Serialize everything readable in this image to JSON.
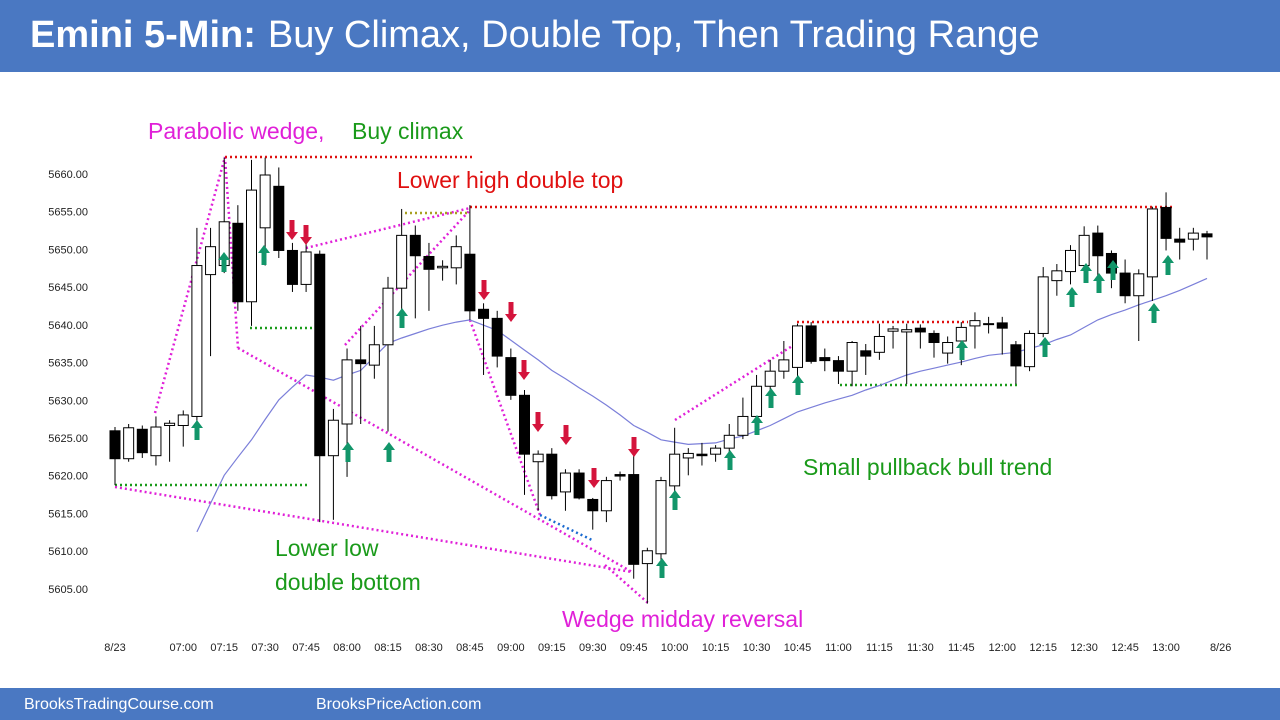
{
  "header": {
    "title_prefix": "Emini 5-Min:",
    "title": "Buy Climax, Double Top, Then Trading Range"
  },
  "footer": {
    "left": "BrooksTradingCourse.com",
    "right": "BrooksPriceAction.com"
  },
  "chart_data": {
    "type": "candlestick",
    "categories": [
      "8/23",
      null,
      null,
      null,
      null,
      "07:00",
      null,
      null,
      "07:15",
      null,
      null,
      "07:30",
      null,
      null,
      "07:45",
      null,
      null,
      "08:00",
      null,
      null,
      "08:15",
      null,
      null,
      "08:30",
      null,
      null,
      "08:45",
      null,
      null,
      "09:00",
      null,
      null,
      "09:15",
      null,
      null,
      "09:30",
      null,
      null,
      "09:45",
      null,
      null,
      "10:00",
      null,
      null,
      "10:15",
      null,
      null,
      "10:30",
      null,
      null,
      "10:45",
      null,
      null,
      "11:00",
      null,
      null,
      "11:15",
      null,
      null,
      "11:30",
      null,
      null,
      "11:45",
      null,
      null,
      "12:00",
      null,
      null,
      "12:15",
      null,
      null,
      "12:30",
      null,
      null,
      "12:45",
      null,
      null,
      "13:00",
      null,
      null,
      null,
      "8/26"
    ],
    "open": [
      5626.1,
      5622.4,
      5626.3,
      5622.8,
      5626.8,
      5626.8,
      5628,
      5646.8,
      5648,
      5653.6,
      5643.2,
      5653,
      5658.5,
      5650,
      5645.5,
      5649.5,
      5622.8,
      5627,
      5635.5,
      5634.8,
      5637.5,
      5645,
      5652,
      5649.2,
      5647.7,
      5647.7,
      5649.5,
      5642.2,
      5641,
      5635.8,
      5630.8,
      5622,
      5623,
      5618,
      5620.5,
      5617,
      5615.5,
      5620.3,
      5620.3,
      5608.5,
      5609.8,
      5618.8,
      5622.5,
      5623,
      5623,
      5623.8,
      5625.5,
      5628,
      5632,
      5634,
      5634.5,
      5640,
      5635.8,
      5635.4,
      5634,
      5636.7,
      5636.5,
      5639.3,
      5639.2,
      5639.7,
      5639,
      5636.4,
      5638,
      5640,
      5640.3,
      5640.4,
      5637.5,
      5634.6,
      5639,
      5646,
      5647.2,
      5648,
      5652.3,
      5649.6,
      5647,
      5644,
      5646.5,
      5655.7,
      5651.5,
      5651.5,
      5652.2,
      null
    ],
    "high": [
      5626.6,
      5627,
      5626.8,
      5628,
      5627.5,
      5628.8,
      5653,
      5653,
      5662.3,
      5656,
      5662,
      5662.3,
      5661,
      5651,
      5651,
      5650,
      5629,
      5637,
      5640,
      5640,
      5646.5,
      5655.5,
      5653.3,
      5651,
      5648.7,
      5652,
      5656,
      5643,
      5642,
      5637,
      5631.5,
      5623.5,
      5623.8,
      5621,
      5621,
      5617.2,
      5620,
      5620.7,
      5623,
      5610.6,
      5620,
      5626.5,
      5623.8,
      5624.5,
      5624.2,
      5627,
      5630.5,
      5633.5,
      5635.5,
      5638,
      5640.3,
      5640.5,
      5637,
      5636,
      5638,
      5637.6,
      5640.3,
      5640,
      5640.3,
      5640.2,
      5639.4,
      5638.6,
      5640.5,
      5641.8,
      5641.2,
      5641.2,
      5638,
      5639.4,
      5647.8,
      5648.2,
      5650.7,
      5653.2,
      5653.3,
      5650,
      5648.8,
      5647.5,
      5655.8,
      5657.7,
      5653,
      5653,
      5652.6,
      null
    ],
    "low": [
      5618.9,
      5622,
      5622.5,
      5621.5,
      5622,
      5624,
      5627,
      5636,
      5647,
      5642,
      5640,
      5648,
      5649,
      5644.5,
      5644.5,
      5614,
      5614.3,
      5620,
      5627,
      5633,
      5626,
      5641,
      5641,
      5642,
      5646,
      5645.5,
      5640.8,
      5633.5,
      5634.5,
      5630.2,
      5617.6,
      5615.5,
      5617,
      5615.5,
      5617,
      5613,
      5614,
      5619.5,
      5606.5,
      5603.2,
      5609,
      5617.5,
      5620.2,
      5621.5,
      5622,
      5623,
      5625,
      5627,
      5631.2,
      5633,
      5633,
      5635,
      5634,
      5632.3,
      5632,
      5633.5,
      5635.5,
      5637,
      5632.3,
      5637,
      5635.8,
      5635,
      5634.8,
      5637,
      5639,
      5636.2,
      5632.3,
      5634,
      5638.5,
      5644,
      5645.5,
      5646,
      5645.8,
      5645,
      5643,
      5638,
      5643.3,
      5650,
      5648.8,
      5650,
      5648.8,
      null
    ],
    "close": [
      5622.4,
      5626.5,
      5623.2,
      5626.6,
      5627.1,
      5628.2,
      5648,
      5650.5,
      5653.8,
      5643.2,
      5658,
      5660,
      5650,
      5645.5,
      5649.8,
      5622.8,
      5627.5,
      5635.5,
      5635,
      5637.5,
      5645,
      5652,
      5649.3,
      5647.5,
      5647.9,
      5650.5,
      5642,
      5641,
      5636,
      5630.8,
      5623,
      5623,
      5617.5,
      5620.5,
      5617.2,
      5615.5,
      5619.5,
      5620.1,
      5608.4,
      5610.2,
      5619.5,
      5623,
      5623.1,
      5622.8,
      5623.8,
      5625.5,
      5628,
      5632,
      5634,
      5635.5,
      5640,
      5635.3,
      5635.4,
      5634,
      5637.8,
      5636,
      5638.6,
      5639.6,
      5639.5,
      5639.2,
      5637.8,
      5637.8,
      5639.8,
      5640.7,
      5640.2,
      5639.7,
      5634.7,
      5639,
      5646.5,
      5647.3,
      5650,
      5652,
      5649.3,
      5647,
      5644,
      5646.9,
      5655.5,
      5651.6,
      5651.1,
      5652.3,
      5651.8,
      null
    ],
    "moving_average": {
      "color": "#7b7fd9",
      "values": [
        null,
        null,
        null,
        null,
        null,
        null,
        5612.7,
        5616.5,
        5620.2,
        5622.6,
        5624.9,
        5627.6,
        5630.2,
        5631.9,
        5633.5,
        5633.2,
        5632.8,
        5633.5,
        5634.1,
        5635.9,
        5637.7,
        5638.4,
        5639,
        5639.6,
        5640.1,
        5640.5,
        5640.8,
        5640.1,
        5639.4,
        5638.1,
        5636.8,
        5635.5,
        5634.1,
        5633,
        5631.8,
        5630.7,
        5629.5,
        5628.2,
        5626.8,
        5625.9,
        5624.9,
        5624.6,
        5624.3,
        5624.4,
        5624.5,
        5625,
        5625.4,
        5626.1,
        5626.8,
        5627.7,
        5628.6,
        5629.2,
        5629.8,
        5630.3,
        5630.8,
        5631.5,
        5632.1,
        5632.8,
        5633.5,
        5634,
        5634.4,
        5634.8,
        5635.2,
        5635.7,
        5636.1,
        5636.3,
        5636.5,
        5637,
        5637.5,
        5638.2,
        5638.8,
        5639.8,
        5640.8,
        5641.5,
        5642.1,
        5642.8,
        5643.4,
        5644,
        5644.7,
        5645.5,
        5646.3,
        null
      ]
    },
    "ylim": [
      5602,
      5664
    ],
    "yticks": [
      {
        "value": 5605,
        "label": "5605.00"
      },
      {
        "value": 5610,
        "label": "5610.00"
      },
      {
        "value": 5615,
        "label": "5615.00"
      },
      {
        "value": 5620,
        "label": "5620.00"
      },
      {
        "value": 5625,
        "label": "5625.00"
      },
      {
        "value": 5630,
        "label": "5630.00"
      },
      {
        "value": 5635,
        "label": "5635.00"
      },
      {
        "value": 5640,
        "label": "5640.00"
      },
      {
        "value": 5645,
        "label": "5645.00"
      },
      {
        "value": 5650,
        "label": "5650.00"
      },
      {
        "value": 5655,
        "label": "5655.00"
      },
      {
        "value": 5660,
        "label": "5660.00"
      }
    ],
    "grid": false,
    "annotations": [
      {
        "text": "Parabolic wedge,",
        "color": "#e020d8"
      },
      {
        "text": "Buy climax",
        "color": "#1a9a1a"
      },
      {
        "text": "Lower high double top",
        "color": "#e01010"
      },
      {
        "text": "Lower low",
        "color": "#1a9a1a"
      },
      {
        "text": "double bottom",
        "color": "#1a9a1a"
      },
      {
        "text": "Wedge midday reversal",
        "color": "#e020d8"
      },
      {
        "text": "Small pullback bull trend",
        "color": "#1a9a1a"
      }
    ]
  }
}
